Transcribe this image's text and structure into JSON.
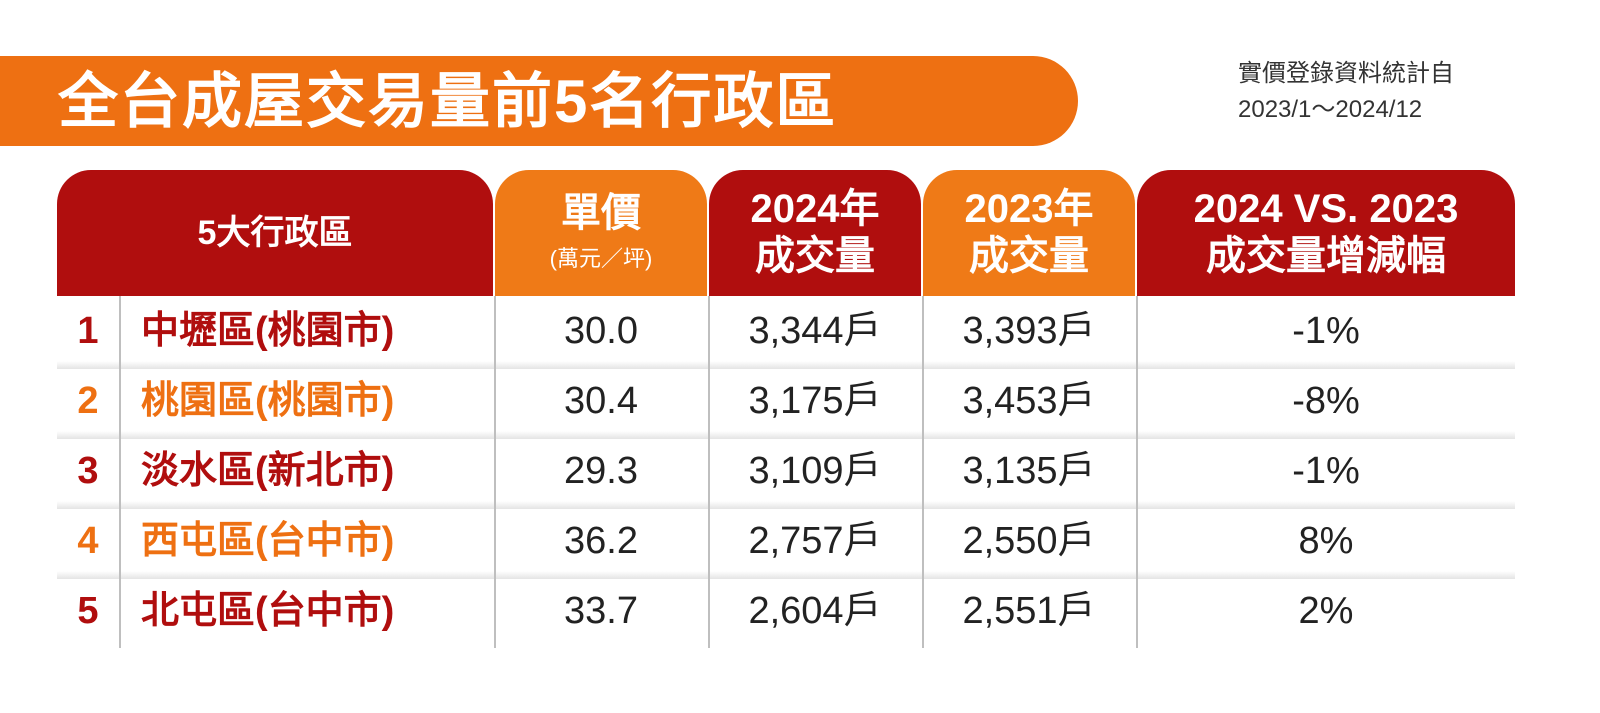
{
  "title": "全台成屋交易量前5名行政區",
  "source": {
    "line1": "實價登錄資料統計自",
    "line2": "2023/1～2024/12"
  },
  "colors": {
    "accent_orange": "#ee7012",
    "accent_red": "#b00e0e"
  },
  "table": {
    "headers": {
      "district": "5大行政區",
      "price_l1": "單價",
      "price_l2": "(萬元／坪)",
      "y2024_l1": "2024年",
      "y2024_l2": "成交量",
      "y2023_l1": "2023年",
      "y2023_l2": "成交量",
      "change_l1": "2024 VS. 2023",
      "change_l2": "成交量增減幅"
    },
    "rows": [
      {
        "rank": "1",
        "district": "中壢區(桃園市)",
        "price": "30.0",
        "vol2024": "3,344戶",
        "vol2023": "3,393戶",
        "change": "-1%",
        "color": "red"
      },
      {
        "rank": "2",
        "district": "桃園區(桃園市)",
        "price": "30.4",
        "vol2024": "3,175戶",
        "vol2023": "3,453戶",
        "change": "-8%",
        "color": "orange"
      },
      {
        "rank": "3",
        "district": "淡水區(新北市)",
        "price": "29.3",
        "vol2024": "3,109戶",
        "vol2023": "3,135戶",
        "change": "-1%",
        "color": "red"
      },
      {
        "rank": "4",
        "district": "西屯區(台中市)",
        "price": "36.2",
        "vol2024": "2,757戶",
        "vol2023": "2,550戶",
        "change": "8%",
        "color": "orange"
      },
      {
        "rank": "5",
        "district": "北屯區(台中市)",
        "price": "33.7",
        "vol2024": "2,604戶",
        "vol2023": "2,551戶",
        "change": "2%",
        "color": "red"
      }
    ]
  },
  "chart_data": {
    "type": "table",
    "title": "全台成屋交易量前5名行政區",
    "columns": [
      "5大行政區",
      "單價(萬元／坪)",
      "2024年成交量",
      "2023年成交量",
      "2024 VS. 2023成交量增減幅"
    ],
    "rows": [
      [
        "中壢區(桃園市)",
        30.0,
        3344,
        3393,
        -1
      ],
      [
        "桃園區(桃園市)",
        30.4,
        3175,
        3453,
        -8
      ],
      [
        "淡水區(新北市)",
        29.3,
        3109,
        3135,
        -1
      ],
      [
        "西屯區(台中市)",
        36.2,
        2757,
        2550,
        8
      ],
      [
        "北屯區(台中市)",
        33.7,
        2604,
        2551,
        2
      ]
    ]
  }
}
